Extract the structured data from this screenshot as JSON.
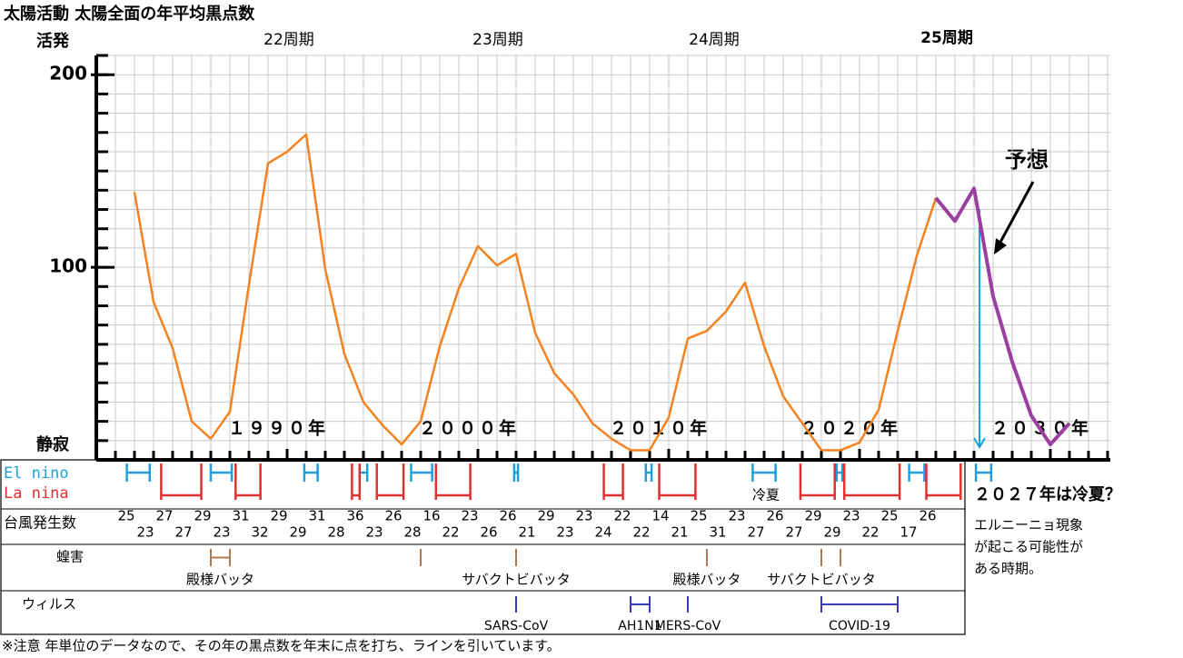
{
  "chart_data": {
    "type": "line",
    "title": "太陽活動 太陽全面の年平均黒点数",
    "axis_high": "活発",
    "axis_low": "静寂",
    "cycle_labels": [
      "22周期",
      "23周期",
      "24周期",
      "25周期"
    ],
    "forecast_label": "予想",
    "x": [
      1982,
      1983,
      1984,
      1985,
      1986,
      1987,
      1988,
      1989,
      1990,
      1991,
      1992,
      1993,
      1994,
      1995,
      1996,
      1997,
      1998,
      1999,
      2000,
      2001,
      2002,
      2003,
      2004,
      2005,
      2006,
      2007,
      2008,
      2009,
      2010,
      2011,
      2012,
      2013,
      2014,
      2015,
      2016,
      2017,
      2018,
      2019,
      2020,
      2021,
      2022,
      2023,
      2024,
      2025,
      2026,
      2027,
      2028,
      2029,
      2030,
      2031
    ],
    "series": [
      {
        "color": "#f58220",
        "values": [
          139,
          82,
          58,
          20,
          11,
          25,
          91,
          154,
          160,
          169,
          99,
          55,
          30,
          18,
          8,
          20,
          59,
          89,
          111,
          101,
          107,
          66,
          45,
          34,
          19,
          11,
          5,
          5,
          22,
          63,
          67,
          77,
          92,
          59,
          33,
          19,
          5,
          5,
          9,
          26,
          67,
          106,
          136,
          null,
          null,
          null,
          null,
          null,
          null,
          null
        ]
      },
      {
        "color": "#9b3fa0",
        "values": [
          null,
          null,
          null,
          null,
          null,
          null,
          null,
          null,
          null,
          null,
          null,
          null,
          null,
          null,
          null,
          null,
          null,
          null,
          null,
          null,
          null,
          null,
          null,
          null,
          null,
          null,
          null,
          null,
          null,
          null,
          null,
          null,
          null,
          null,
          null,
          null,
          null,
          null,
          null,
          null,
          null,
          null,
          136,
          124,
          141,
          85,
          51,
          23,
          8,
          19
        ]
      }
    ],
    "xlim": [
      1980,
      2033
    ],
    "xticks": [
      {
        "value": 1990,
        "label": "１９９０年"
      },
      {
        "value": 2000,
        "label": "２０００年"
      },
      {
        "value": 2010,
        "label": "２０１０年"
      },
      {
        "value": 2020,
        "label": "２０２０年"
      },
      {
        "value": 2030,
        "label": "２０３０年"
      }
    ],
    "ylim": [
      0,
      210
    ],
    "yticks": [
      100,
      200
    ],
    "grid": true,
    "el_nino": {
      "label": "El nino",
      "color": "#1ea0dc",
      "periods": [
        [
          1981.6,
          1982.8
        ],
        [
          1986,
          1987.1
        ],
        [
          1990.9,
          1991.6
        ],
        [
          1993.8,
          1994.2
        ],
        [
          1996.5,
          1997.6
        ],
        [
          2001.9,
          2002.1
        ],
        [
          2008.8,
          2009.1
        ],
        [
          2014.4,
          2015.6
        ],
        [
          2018.8,
          2019.1
        ],
        [
          2022.6,
          2023.4
        ],
        [
          2026.1,
          2026.9
        ]
      ]
    },
    "la_nina": {
      "label": "La nina",
      "color": "#e03030",
      "periods": [
        [
          1983.4,
          1985.5
        ],
        [
          1987.3,
          1988.6
        ],
        [
          1993.4,
          1993.8
        ],
        [
          1994.7,
          1996.1
        ],
        [
          1997.8,
          1999.6
        ],
        [
          2006.6,
          2007.6
        ],
        [
          2009.5,
          2011.4
        ],
        [
          2016.9,
          2018.7
        ],
        [
          2019.2,
          2022.1
        ],
        [
          2023.5,
          2025.3
        ]
      ]
    },
    "cool_summer": "冷夏",
    "typhoons": {
      "label": "台風発生数",
      "values": [
        25,
        23,
        27,
        27,
        29,
        23,
        31,
        32,
        29,
        29,
        31,
        28,
        36,
        23,
        26,
        28,
        16,
        22,
        23,
        26,
        26,
        21,
        29,
        23,
        23,
        24,
        22,
        22,
        14,
        21,
        25,
        31,
        23,
        27,
        26,
        27,
        29,
        29,
        23,
        22,
        25,
        17,
        26
      ]
    },
    "locusts": {
      "label": "蝗害",
      "color": "#b07850",
      "events": [
        {
          "years": [
            1986,
            1987
          ],
          "name": "殿様バッタ"
        },
        {
          "years": [
            1997
          ]
        },
        {
          "years": [
            2002
          ],
          "name": "サバクトビバッタ"
        },
        {
          "years": [
            2012
          ],
          "name": "殿様バッタ"
        },
        {
          "years": [
            2018
          ],
          "name": "サバクトビバッタ"
        },
        {
          "years": [
            2019
          ]
        }
      ]
    },
    "viruses": {
      "label": "ウィルス",
      "color": "#3a3ac0",
      "events": [
        {
          "years": [
            2002
          ],
          "name": "SARS-CoV"
        },
        {
          "years": [
            2008,
            2009
          ],
          "name": "AH1N1"
        },
        {
          "years": [
            2011
          ],
          "name": "MERS-CoV"
        },
        {
          "years": [
            2018,
            2022
          ],
          "name": "COVID-19"
        }
      ]
    },
    "side_title": "２０２７年は冷夏？",
    "side_note": [
      "エルニーニョ現象",
      "が起こる可能性が",
      "ある時期。"
    ],
    "footnote": "※注意 年単位のデータなので、その年の黒点数を年末に点を打ち、ラインを引いています。"
  }
}
